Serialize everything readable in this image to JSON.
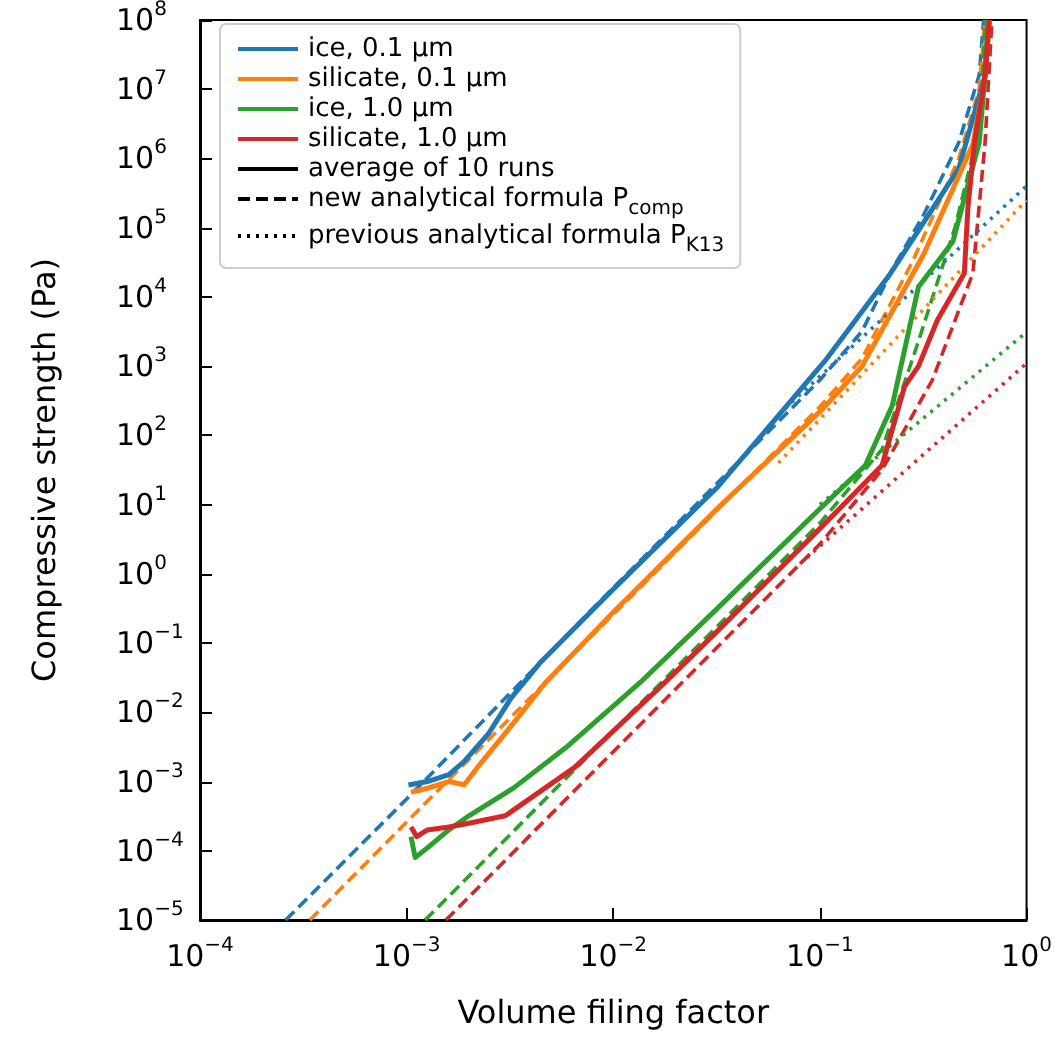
{
  "chart_data": {
    "type": "line",
    "xlabel": "Volume filing factor",
    "ylabel": "Compressive strength (Pa)",
    "log": "xy",
    "grid": false,
    "marker": "none",
    "legend": "top left",
    "xlim": [
      0.0001,
      1
    ],
    "xticks": [
      {
        "value": 0.0001,
        "label": "10$^{−4}$"
      },
      {
        "value": 0.001,
        "label": "10$^{−3}$"
      },
      {
        "value": 0.01,
        "label": "10$^{−2}$"
      },
      {
        "value": 0.1,
        "label": "10$^{−1}$"
      },
      {
        "value": 1,
        "label": "10$^{0}$"
      }
    ],
    "ylim": [
      1e-05,
      100000000
    ],
    "yticks": [
      {
        "value": 1e-05,
        "label": "10$^{−5}$"
      },
      {
        "value": 0.0001,
        "label": "10$^{−4}$"
      },
      {
        "value": 0.001,
        "label": "10$^{−3}$"
      },
      {
        "value": 0.01,
        "label": "10$^{−2}$"
      },
      {
        "value": 0.1,
        "label": "10$^{−1}$"
      },
      {
        "value": 1,
        "label": "10$^{0}$"
      },
      {
        "value": 10,
        "label": "10$^{1}$"
      },
      {
        "value": 100,
        "label": "10$^{2}$"
      },
      {
        "value": 1000,
        "label": "10$^{3}$"
      },
      {
        "value": 10000,
        "label": "10$^{4}$"
      },
      {
        "value": 100000,
        "label": "10$^{5}$"
      },
      {
        "value": 1000000,
        "label": "10$^{6}$"
      },
      {
        "value": 10000000,
        "label": "10$^{7}$"
      },
      {
        "value": 100000000,
        "label": "10$^{8}$"
      }
    ],
    "series": [
      {
        "name": "ice, 0.1 µm",
        "color": "#1f77b4",
        "line_style": "solid",
        "x": [
          0.00102,
          0.00126,
          0.0016,
          0.0019,
          0.0025,
          0.0032,
          0.0044,
          0.01,
          0.032,
          0.106,
          0.22,
          0.47,
          0.63,
          0.65,
          0.66
        ],
        "values": [
          0.00089,
          0.001,
          0.00126,
          0.00195,
          0.005,
          0.016,
          0.051,
          0.6,
          18,
          1200,
          22000,
          720000,
          16000000,
          63000000,
          100000000
        ]
      },
      {
        "name": "silicate, 0.1 µm",
        "color": "#ff7f0e",
        "line_style": "solid",
        "x": [
          0.00105,
          0.00126,
          0.0016,
          0.0019,
          0.0022,
          0.0032,
          0.0047,
          0.01,
          0.032,
          0.1,
          0.16,
          0.32,
          0.55,
          0.63,
          0.66
        ],
        "values": [
          0.0007,
          0.0008,
          0.001,
          0.0009,
          0.0016,
          0.0063,
          0.027,
          0.28,
          8.9,
          220,
          1000,
          43000,
          1600000,
          16000000,
          100000000
        ]
      },
      {
        "name": "ice, 1.0 µm",
        "color": "#2ca02c",
        "line_style": "solid",
        "x": [
          0.00105,
          0.0011,
          0.00126,
          0.0016,
          0.002,
          0.0033,
          0.0059,
          0.0135,
          0.032,
          0.1,
          0.166,
          0.224,
          0.3,
          0.44,
          0.59,
          0.63,
          0.65
        ],
        "values": [
          0.00016,
          8e-05,
          0.00011,
          0.0002,
          0.00032,
          0.00081,
          0.0031,
          0.027,
          0.32,
          8.7,
          37,
          270,
          14000,
          63000,
          1700000,
          16000000,
          100000000
        ]
      },
      {
        "name": "silicate, 1.0 µm",
        "color": "#d62728",
        "line_style": "solid",
        "x": [
          0.00105,
          0.00112,
          0.00126,
          0.0016,
          0.002,
          0.003,
          0.0065,
          0.0178,
          0.032,
          0.1,
          0.2,
          0.257,
          0.3,
          0.37,
          0.5,
          0.52,
          0.56,
          0.63,
          0.66
        ],
        "values": [
          0.00022,
          0.00016,
          0.0002,
          0.00022,
          0.00025,
          0.00032,
          0.0016,
          0.027,
          0.15,
          4.5,
          37,
          510,
          1000,
          4600,
          22000,
          190000,
          1700000,
          16000000,
          100000000
        ]
      },
      {
        "name": "average of 10 runs",
        "color": "#000000",
        "line_style": "solid"
      },
      {
        "name": "new analytical formula P$_{comp}$",
        "color": "#000000",
        "line_style": "dashed"
      },
      {
        "name": "previous analytical formula P$_{K13}$",
        "color": "#000000",
        "line_style": "dotted"
      },
      {
        "color": "#1f77b4",
        "line_style": "dashed",
        "x": [
          0.00026,
          0.001,
          0.01,
          0.1,
          0.16,
          0.224,
          0.32,
          0.47,
          0.59,
          0.62
        ],
        "values": [
          1e-05,
          0.00056,
          0.63,
          630,
          3200,
          25000,
          160000,
          1700000,
          16000000,
          100000000
        ]
      },
      {
        "color": "#ff7f0e",
        "line_style": "dashed",
        "x": [
          0.00034,
          0.001,
          0.01,
          0.1,
          0.16,
          0.28,
          0.47,
          0.59,
          0.63
        ],
        "values": [
          1e-05,
          0.00026,
          0.26,
          260,
          1300,
          32000,
          1000000,
          10000000,
          100000000
        ]
      },
      {
        "color": "#2ca02c",
        "line_style": "dashed",
        "x": [
          0.00123,
          0.01,
          0.1,
          0.2,
          0.3,
          0.45,
          0.6,
          0.63
        ],
        "values": [
          1e-05,
          0.0054,
          5.4,
          63,
          2300,
          100000,
          3200000,
          100000000
        ]
      },
      {
        "color": "#d62728",
        "line_style": "dashed",
        "x": [
          0.00155,
          0.01,
          0.1,
          0.2,
          0.35,
          0.55,
          0.63,
          0.68
        ],
        "values": [
          1e-05,
          0.0027,
          2.7,
          32,
          630,
          22000,
          1700000,
          100000000
        ]
      },
      {
        "color": "#1f77b4",
        "line_style": "dotted",
        "x": [
          0.063,
          1
        ],
        "values": [
          200,
          400000
        ]
      },
      {
        "color": "#ff7f0e",
        "line_style": "dotted",
        "x": [
          0.063,
          1
        ],
        "values": [
          40,
          250000
        ]
      },
      {
        "color": "#2ca02c",
        "line_style": "dotted",
        "x": [
          0.1,
          1
        ],
        "values": [
          10,
          3100
        ]
      },
      {
        "color": "#d62728",
        "line_style": "dotted",
        "x": [
          0.08,
          1
        ],
        "values": [
          1.4,
          1100
        ]
      }
    ]
  }
}
